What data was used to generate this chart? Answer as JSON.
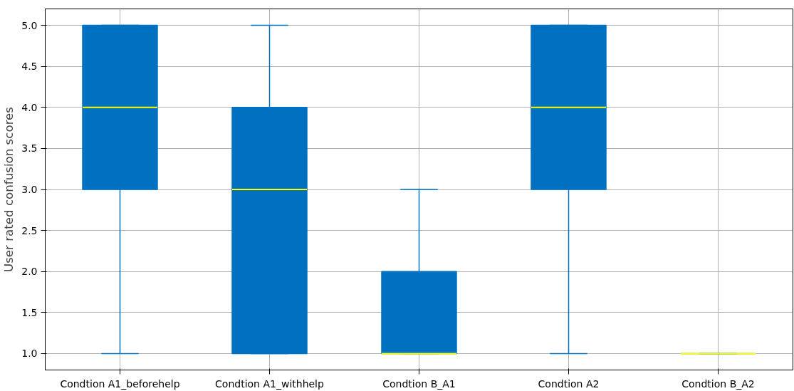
{
  "chart_data": {
    "type": "box",
    "ylabel": "User rated confusion scores",
    "categories": [
      "Condtion A1_beforehelp",
      "Condtion A1_withhelp",
      "Condtion B_A1",
      "Condtion A2",
      "Condtion B_A2"
    ],
    "series": [
      {
        "color": "#0070c0",
        "boxes": [
          {
            "low": 1,
            "q1": 3,
            "median": 4,
            "q3": 5,
            "high": 5
          },
          {
            "low": 1,
            "q1": 1,
            "median": 3,
            "q3": 4,
            "high": 5
          },
          {
            "low": 1,
            "q1": 1,
            "median": 1,
            "q3": 2,
            "high": 3
          },
          {
            "low": 1,
            "q1": 3,
            "median": 4,
            "q3": 5,
            "high": 5
          },
          {
            "low": 1,
            "q1": 1,
            "median": 1,
            "q3": 1,
            "high": 1
          }
        ]
      }
    ],
    "ylim": [
      0.8,
      5.2
    ],
    "yticks": [
      {
        "value": 1,
        "label": "1.0"
      },
      {
        "value": 1.5,
        "label": "1.5"
      },
      {
        "value": 2,
        "label": "2.0"
      },
      {
        "value": 2.5,
        "label": "2.5"
      },
      {
        "value": 3,
        "label": "3.0"
      },
      {
        "value": 3.5,
        "label": "3.5"
      },
      {
        "value": 4,
        "label": "4.0"
      },
      {
        "value": 4.5,
        "label": "4.5"
      },
      {
        "value": 5,
        "label": "5.0"
      }
    ],
    "grid": true
  }
}
